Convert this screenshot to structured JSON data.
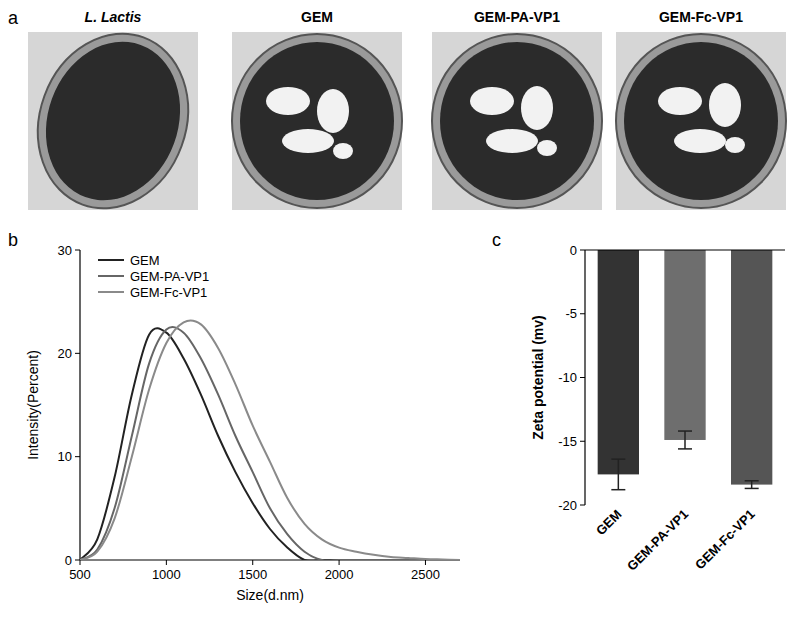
{
  "panel_a": {
    "panel": "a",
    "images": [
      {
        "label": "L. Lactis"
      },
      {
        "label": "GEM"
      },
      {
        "label": "GEM-PA-VP1"
      },
      {
        "label": "GEM-Fc-VP1"
      }
    ]
  },
  "chart_data": [
    {
      "type": "line",
      "panel": "b",
      "xlabel": "Size(d.nm)",
      "ylabel": "Intensity(Percent)",
      "x": [
        500,
        600,
        700,
        800,
        900,
        1000,
        1100,
        1200,
        1300,
        1400,
        1500,
        1600,
        1700,
        1800,
        1900,
        2000,
        2100,
        2200,
        2300,
        2400,
        2500,
        2600,
        2700
      ],
      "series": [
        {
          "name": "GEM",
          "color": "#222222",
          "values": [
            0,
            2,
            8,
            16,
            21.8,
            22,
            19.5,
            16,
            12,
            8.5,
            5.5,
            3,
            1.2,
            0,
            0,
            0,
            0,
            0,
            0,
            0,
            0,
            0,
            0
          ]
        },
        {
          "name": "GEM-PA-VP1",
          "color": "#666666",
          "values": [
            0,
            1,
            5,
            12,
            19,
            22.3,
            22,
            19.5,
            16,
            12,
            8.5,
            5,
            2.5,
            0.8,
            0,
            0,
            0,
            0,
            0,
            0,
            0,
            0,
            0
          ]
        },
        {
          "name": "GEM-Fc-VP1",
          "color": "#8a8a8a",
          "values": [
            0,
            0.8,
            4,
            10,
            16.5,
            21,
            23,
            22.8,
            20.5,
            17,
            13,
            9.5,
            6,
            3.5,
            2,
            1.2,
            0.8,
            0.5,
            0.3,
            0.2,
            0.1,
            0.05,
            0
          ]
        }
      ],
      "xlim": [
        500,
        2700
      ],
      "xticks": [
        500,
        1000,
        1500,
        2000,
        2500
      ],
      "ylim": [
        0,
        30
      ],
      "yticks": [
        0,
        10,
        20,
        30
      ],
      "grid": false,
      "legend": "upper left"
    },
    {
      "type": "bar",
      "panel": "c",
      "ylabel": "Zeta potential (mv)",
      "categories": [
        "GEM",
        "GEM-PA-VP1",
        "GEM-Fc-VP1"
      ],
      "values": [
        -17.6,
        -14.9,
        -18.4
      ],
      "errors": [
        1.2,
        0.7,
        0.3
      ],
      "colors": [
        "#333333",
        "#6e6e6e",
        "#555555"
      ],
      "ylim": [
        -20,
        0
      ],
      "yticks": [
        0,
        -5,
        -10,
        -15,
        -20
      ],
      "grid": false
    }
  ]
}
